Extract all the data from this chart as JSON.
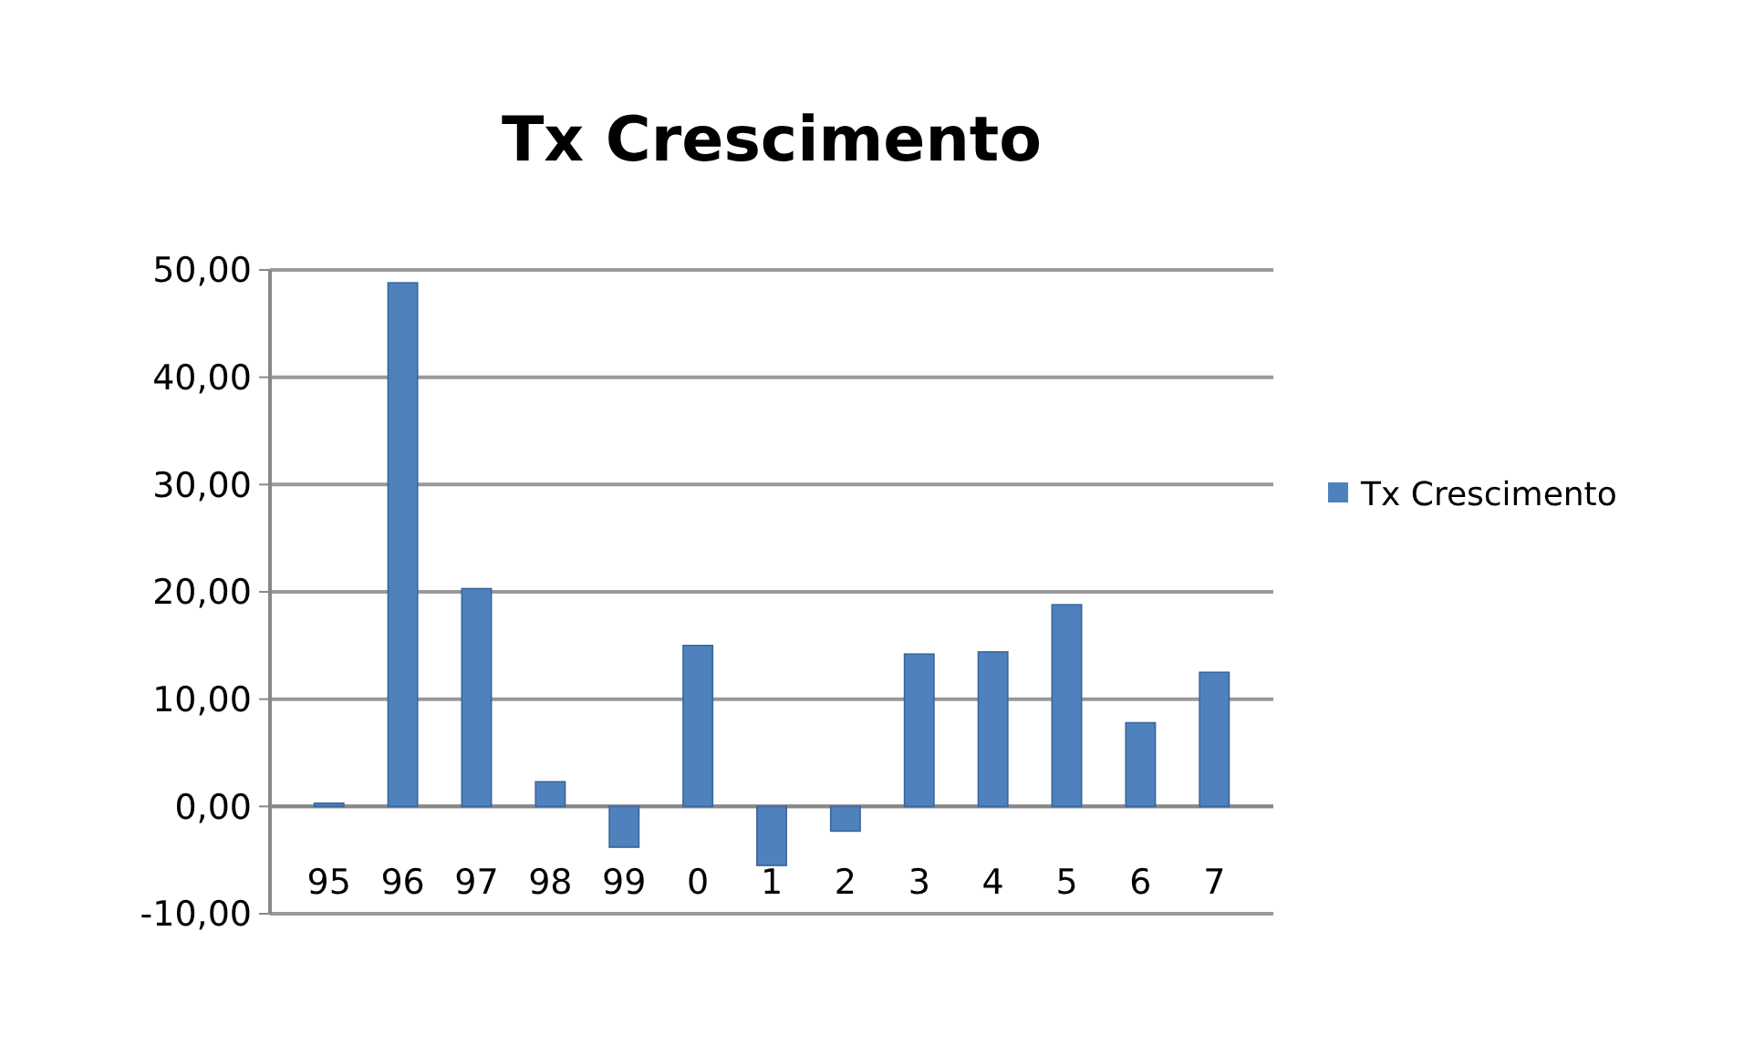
{
  "chart_data": {
    "type": "bar",
    "title": "Tx Crescimento",
    "categories": [
      "95",
      "96",
      "97",
      "98",
      "99",
      "0",
      "1",
      "2",
      "3",
      "4",
      "5",
      "6",
      "7"
    ],
    "series": [
      {
        "name": "Tx Crescimento",
        "color": "#4f81bd",
        "values": [
          0.3,
          48.8,
          20.3,
          2.3,
          -3.8,
          15.0,
          -5.5,
          -2.3,
          14.2,
          14.4,
          18.8,
          7.8,
          12.5
        ]
      }
    ],
    "ylim": [
      -10,
      50
    ],
    "yticks": [
      {
        "value": -10,
        "label": "-10,00"
      },
      {
        "value": 0,
        "label": "0,00"
      },
      {
        "value": 10,
        "label": "10,00"
      },
      {
        "value": 20,
        "label": "20,00"
      },
      {
        "value": 30,
        "label": "30,00"
      },
      {
        "value": 40,
        "label": "40,00"
      },
      {
        "value": 50,
        "label": "50,00"
      }
    ],
    "grid": "y",
    "legend": "right"
  }
}
